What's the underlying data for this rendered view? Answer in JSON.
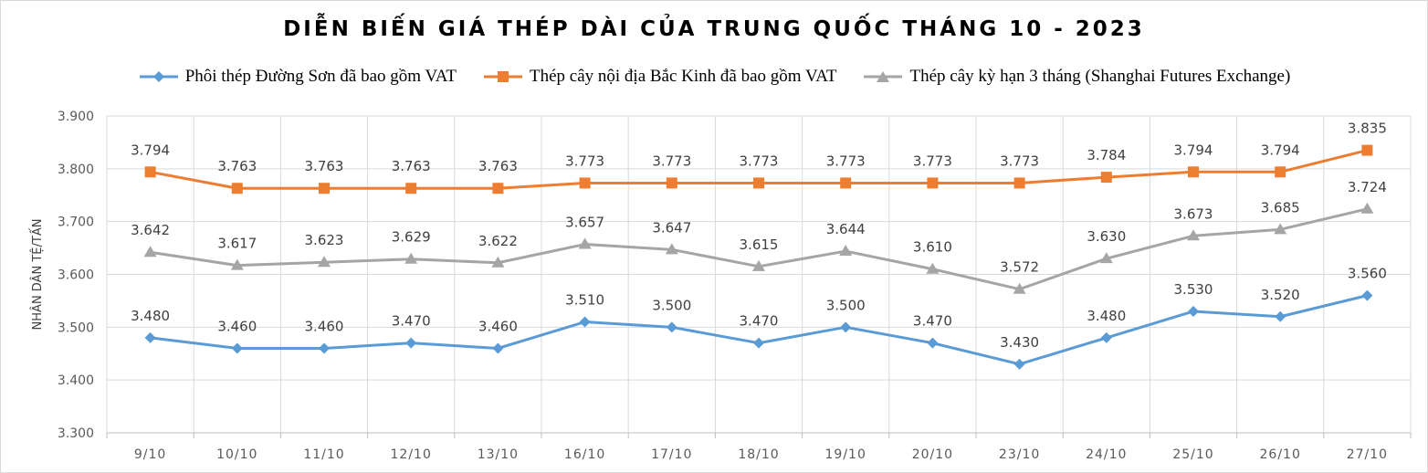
{
  "chart_data": {
    "type": "line",
    "title": "DIỄN BIẾN GIÁ THÉP DÀI CỦA TRUNG QUỐC THÁNG 10 - 2023",
    "xlabel": "",
    "ylabel": "NHÂN DÂN TỆ/TẤN",
    "ylim": [
      3.3,
      3.9
    ],
    "yticks": [
      "3.300",
      "3.400",
      "3.500",
      "3.600",
      "3.700",
      "3.800",
      "3.900"
    ],
    "grid": true,
    "legend_position": "top",
    "categories": [
      "9/10",
      "10/10",
      "11/10",
      "12/10",
      "13/10",
      "16/10",
      "17/10",
      "18/10",
      "19/10",
      "20/10",
      "23/10",
      "24/10",
      "25/10",
      "26/10",
      "27/10"
    ],
    "series": [
      {
        "name": "Phôi thép Đường Sơn đã bao gồm VAT",
        "color": "#5b9bd5",
        "marker": "diamond",
        "values": [
          3.48,
          3.46,
          3.46,
          3.47,
          3.46,
          3.51,
          3.5,
          3.47,
          3.5,
          3.47,
          3.43,
          3.48,
          3.53,
          3.52,
          3.56
        ],
        "labels": [
          "3.480",
          "3.460",
          "3.460",
          "3.470",
          "3.460",
          "3.510",
          "3.500",
          "3.470",
          "3.500",
          "3.470",
          "3.430",
          "3.480",
          "3.530",
          "3.520",
          "3.560"
        ]
      },
      {
        "name": "Thép cây nội địa Bắc Kinh đã bao gồm VAT",
        "color": "#ed7d31",
        "marker": "square",
        "values": [
          3.794,
          3.763,
          3.763,
          3.763,
          3.763,
          3.773,
          3.773,
          3.773,
          3.773,
          3.773,
          3.773,
          3.784,
          3.794,
          3.794,
          3.835
        ],
        "labels": [
          "3.794",
          "3.763",
          "3.763",
          "3.763",
          "3.763",
          "3.773",
          "3.773",
          "3.773",
          "3.773",
          "3.773",
          "3.773",
          "3.784",
          "3.794",
          "3.794",
          "3.835"
        ]
      },
      {
        "name": "Thép cây kỳ hạn 3 tháng (Shanghai Futures Exchange)",
        "color": "#a5a5a5",
        "marker": "triangle",
        "values": [
          3.642,
          3.617,
          3.623,
          3.629,
          3.622,
          3.657,
          3.647,
          3.615,
          3.644,
          3.61,
          3.572,
          3.63,
          3.673,
          3.685,
          3.724
        ],
        "labels": [
          "3.642",
          "3.617",
          "3.623",
          "3.629",
          "3.622",
          "3.657",
          "3.647",
          "3.615",
          "3.644",
          "3.610",
          "3.572",
          "3.630",
          "3.673",
          "3.685",
          "3.724"
        ]
      }
    ]
  }
}
